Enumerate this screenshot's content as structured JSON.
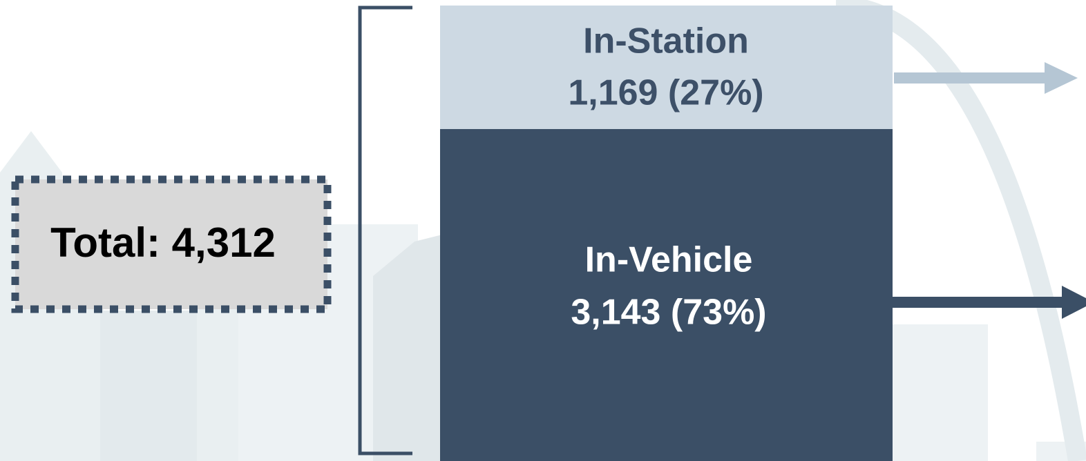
{
  "total": {
    "text": "Total: 4,312"
  },
  "segments": [
    {
      "label": "In-Station",
      "value": "1,169 (27%)"
    },
    {
      "label": "In-Vehicle",
      "value": "3,143 (73%)"
    }
  ]
}
